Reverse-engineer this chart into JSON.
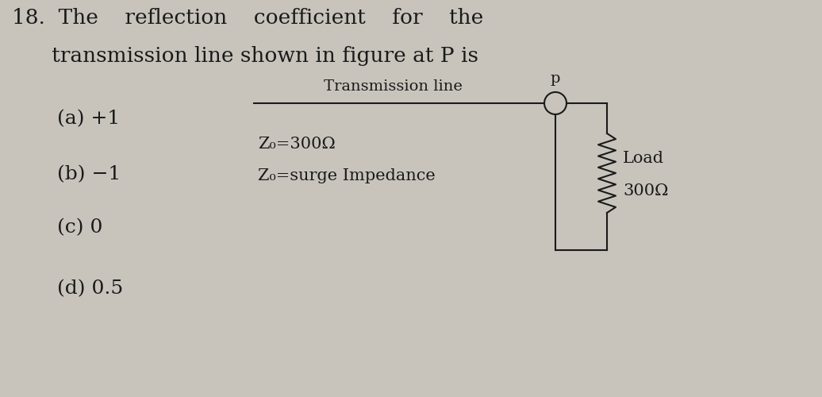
{
  "bg_color": "#c8c4bc",
  "title_line1": "18.  The    reflection    coefficient    for    the",
  "title_line2": "     └transmission line shown in figure at P is",
  "options": [
    "(a) +1",
    "(b) −1",
    "(c) 0",
    "(d) 0.5"
  ],
  "circuit_label": "Transmission line",
  "point_label": "p",
  "z0_line1": "Z₀=300Ω",
  "z0_line2": "Z₀=surge Impedance",
  "load_label1": "Load",
  "load_label2": "300Ω",
  "font_color": "#1a1a1a",
  "font_size_title": 19,
  "font_size_options": 18,
  "font_size_circuit": 14
}
